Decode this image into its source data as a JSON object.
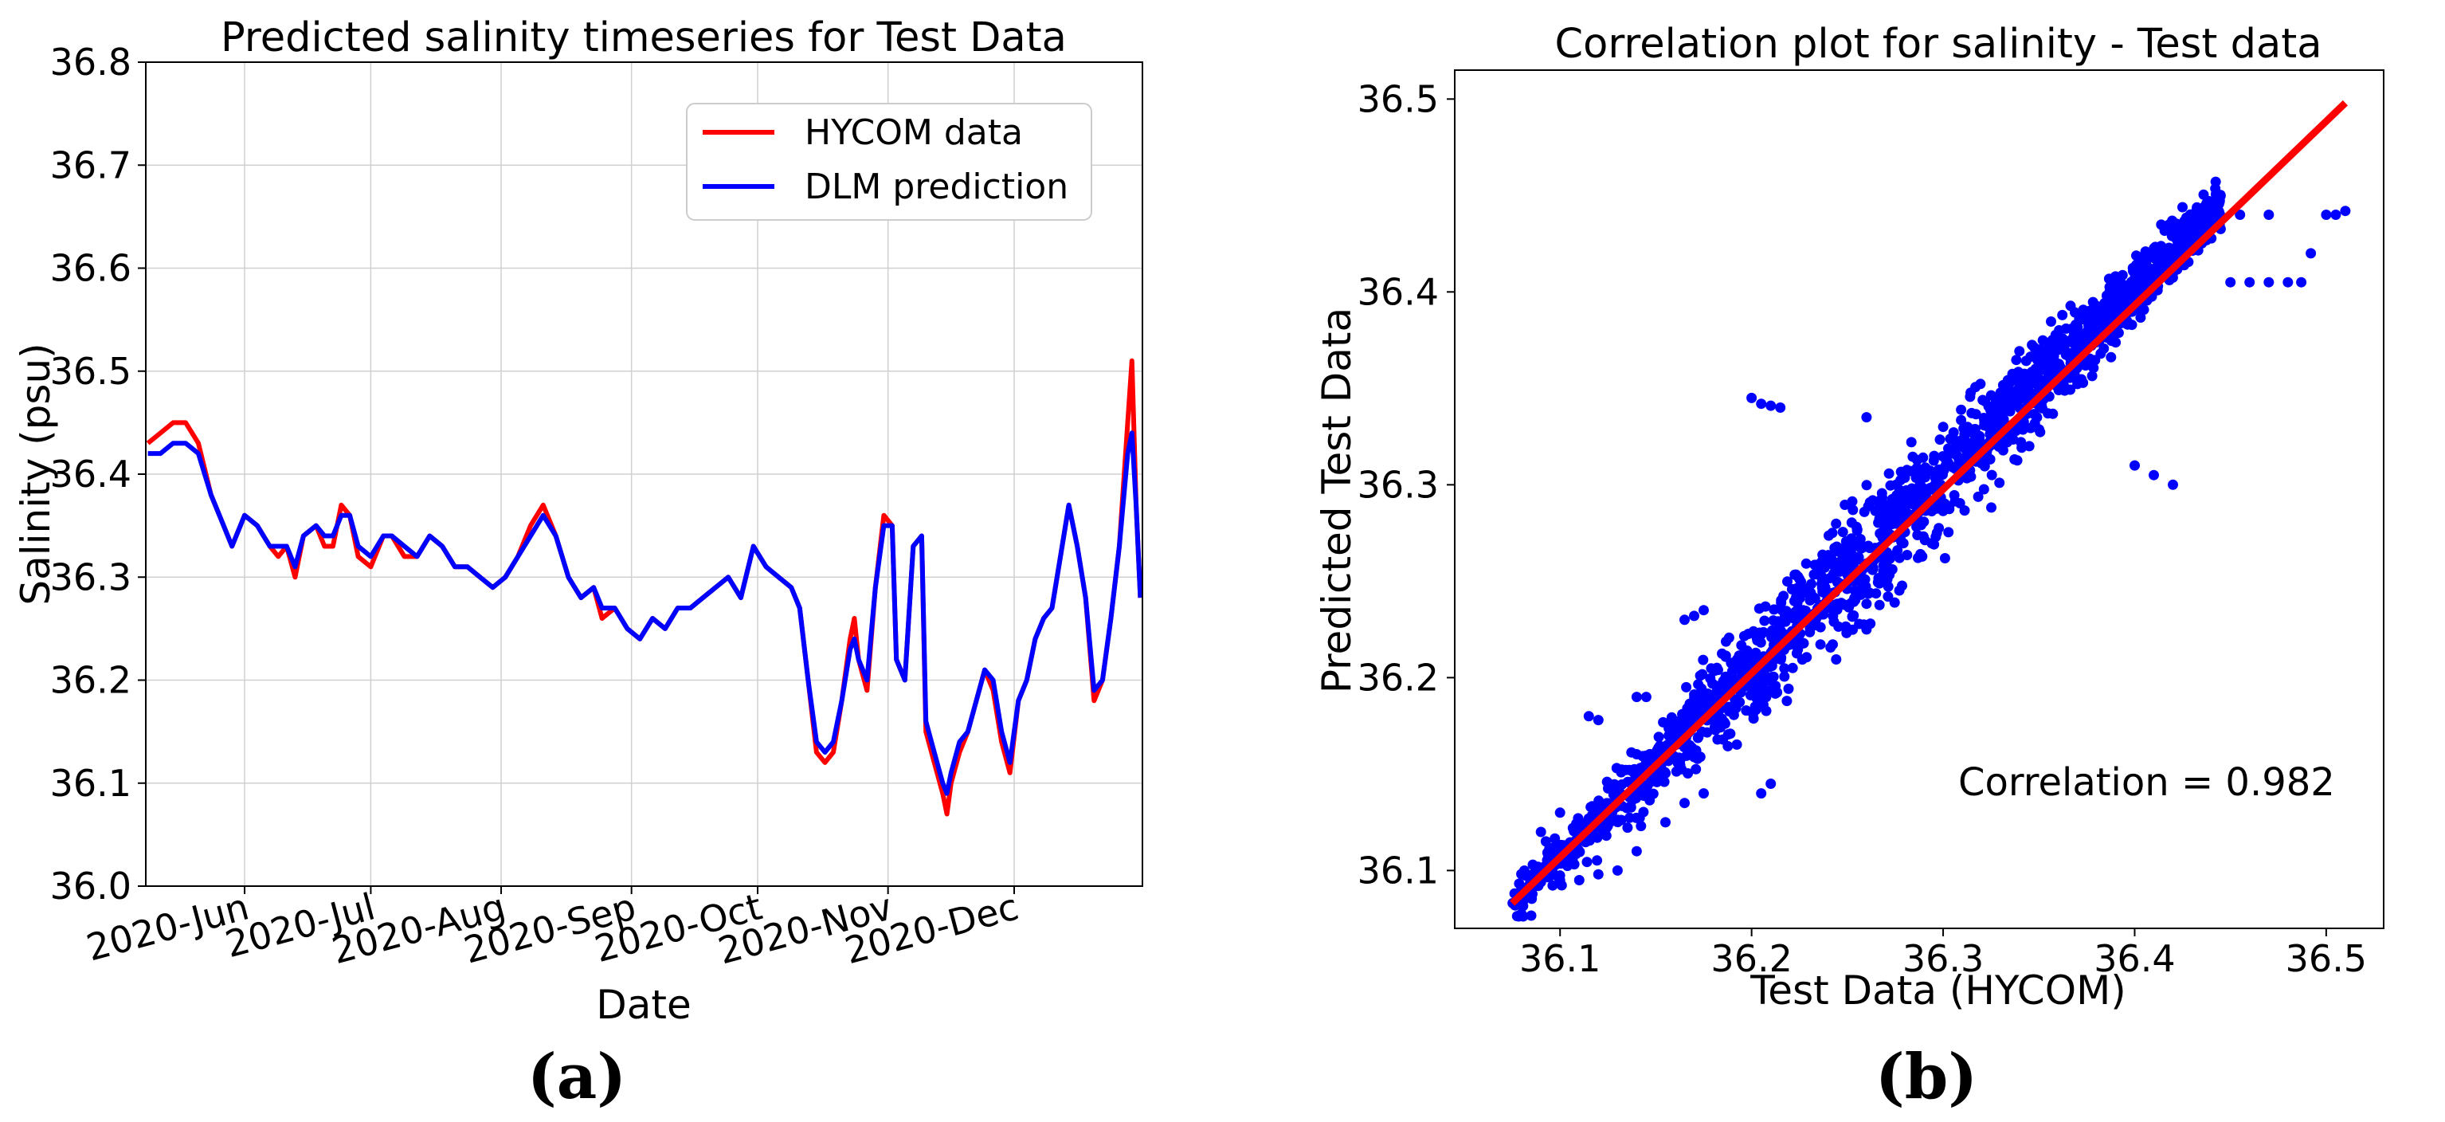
{
  "chart_data": [
    {
      "type": "line",
      "title": "Predicted salinity timeseries for Test Data",
      "xlabel": "Date",
      "ylabel": "Salinity (psu)",
      "panel_label": "(a)",
      "grid": true,
      "ylim": [
        36.0,
        36.8
      ],
      "yticks": [
        36.0,
        36.1,
        36.2,
        36.3,
        36.4,
        36.5,
        36.6,
        36.7,
        36.8
      ],
      "ytick_labels": [
        "36.0",
        "36.1",
        "36.2",
        "36.3",
        "36.4",
        "36.5",
        "36.6",
        "36.7",
        "36.8"
      ],
      "xlim_days": [
        -23.5,
        213.5
      ],
      "x_unit": "days since 2020-06-01",
      "xticks_days": [
        0,
        30,
        61,
        92,
        122,
        153,
        183
      ],
      "xtick_labels": [
        "2020-Jun",
        "2020-Jul",
        "2020-Aug",
        "2020-Sep",
        "2020-Oct",
        "2020-Nov",
        "2020-Dec"
      ],
      "legend_position": "top-right",
      "series": [
        {
          "name": "HYCOM data",
          "color": "#ff0000",
          "points": [
            [
              -23,
              36.43
            ],
            [
              -20,
              36.44
            ],
            [
              -17,
              36.45
            ],
            [
              -14,
              36.45
            ],
            [
              -11,
              36.43
            ],
            [
              -8,
              36.38
            ],
            [
              -5,
              36.35
            ],
            [
              -3,
              36.33
            ],
            [
              0,
              36.36
            ],
            [
              3,
              36.35
            ],
            [
              6,
              36.33
            ],
            [
              8,
              36.32
            ],
            [
              10,
              36.33
            ],
            [
              12,
              36.3
            ],
            [
              14,
              36.34
            ],
            [
              17,
              36.35
            ],
            [
              19,
              36.33
            ],
            [
              21,
              36.33
            ],
            [
              23,
              36.37
            ],
            [
              25,
              36.36
            ],
            [
              27,
              36.32
            ],
            [
              30,
              36.31
            ],
            [
              33,
              36.34
            ],
            [
              35,
              36.34
            ],
            [
              38,
              36.32
            ],
            [
              41,
              36.32
            ],
            [
              44,
              36.34
            ],
            [
              47,
              36.33
            ],
            [
              50,
              36.31
            ],
            [
              53,
              36.31
            ],
            [
              56,
              36.3
            ],
            [
              59,
              36.29
            ],
            [
              62,
              36.3
            ],
            [
              65,
              36.32
            ],
            [
              68,
              36.35
            ],
            [
              71,
              36.37
            ],
            [
              74,
              36.34
            ],
            [
              77,
              36.3
            ],
            [
              80,
              36.28
            ],
            [
              83,
              36.29
            ],
            [
              85,
              36.26
            ],
            [
              88,
              36.27
            ],
            [
              91,
              36.25
            ],
            [
              94,
              36.24
            ],
            [
              97,
              36.26
            ],
            [
              100,
              36.25
            ],
            [
              103,
              36.27
            ],
            [
              106,
              36.27
            ],
            [
              109,
              36.28
            ],
            [
              112,
              36.29
            ],
            [
              115,
              36.3
            ],
            [
              118,
              36.28
            ],
            [
              121,
              36.33
            ],
            [
              124,
              36.31
            ],
            [
              127,
              36.3
            ],
            [
              130,
              36.29
            ],
            [
              132,
              36.27
            ],
            [
              134,
              36.2
            ],
            [
              136,
              36.13
            ],
            [
              138,
              36.12
            ],
            [
              140,
              36.13
            ],
            [
              142,
              36.18
            ],
            [
              144,
              36.24
            ],
            [
              145,
              36.26
            ],
            [
              146,
              36.22
            ],
            [
              148,
              36.19
            ],
            [
              150,
              36.29
            ],
            [
              152,
              36.36
            ],
            [
              154,
              36.35
            ],
            [
              155,
              36.22
            ],
            [
              157,
              36.2
            ],
            [
              159,
              36.33
            ],
            [
              161,
              36.34
            ],
            [
              162,
              36.15
            ],
            [
              164,
              36.12
            ],
            [
              166,
              36.09
            ],
            [
              167,
              36.07
            ],
            [
              168,
              36.1
            ],
            [
              170,
              36.13
            ],
            [
              172,
              36.15
            ],
            [
              174,
              36.18
            ],
            [
              176,
              36.21
            ],
            [
              178,
              36.19
            ],
            [
              180,
              36.14
            ],
            [
              182,
              36.11
            ],
            [
              184,
              36.18
            ],
            [
              186,
              36.2
            ],
            [
              188,
              36.24
            ],
            [
              190,
              36.26
            ],
            [
              192,
              36.27
            ],
            [
              194,
              36.32
            ],
            [
              196,
              36.37
            ],
            [
              198,
              36.33
            ],
            [
              200,
              36.28
            ],
            [
              202,
              36.18
            ],
            [
              204,
              36.2
            ],
            [
              206,
              36.26
            ],
            [
              208,
              36.33
            ],
            [
              210,
              36.45
            ],
            [
              211,
              36.51
            ],
            [
              212,
              36.37
            ],
            [
              213,
              36.28
            ]
          ]
        },
        {
          "name": "DLM prediction",
          "color": "#0000ff",
          "points": [
            [
              -23,
              36.42
            ],
            [
              -20,
              36.42
            ],
            [
              -17,
              36.43
            ],
            [
              -14,
              36.43
            ],
            [
              -11,
              36.42
            ],
            [
              -8,
              36.38
            ],
            [
              -5,
              36.35
            ],
            [
              -3,
              36.33
            ],
            [
              0,
              36.36
            ],
            [
              3,
              36.35
            ],
            [
              6,
              36.33
            ],
            [
              8,
              36.33
            ],
            [
              10,
              36.33
            ],
            [
              12,
              36.31
            ],
            [
              14,
              36.34
            ],
            [
              17,
              36.35
            ],
            [
              19,
              36.34
            ],
            [
              21,
              36.34
            ],
            [
              23,
              36.36
            ],
            [
              25,
              36.36
            ],
            [
              27,
              36.33
            ],
            [
              30,
              36.32
            ],
            [
              33,
              36.34
            ],
            [
              35,
              36.34
            ],
            [
              38,
              36.33
            ],
            [
              41,
              36.32
            ],
            [
              44,
              36.34
            ],
            [
              47,
              36.33
            ],
            [
              50,
              36.31
            ],
            [
              53,
              36.31
            ],
            [
              56,
              36.3
            ],
            [
              59,
              36.29
            ],
            [
              62,
              36.3
            ],
            [
              65,
              36.32
            ],
            [
              68,
              36.34
            ],
            [
              71,
              36.36
            ],
            [
              74,
              36.34
            ],
            [
              77,
              36.3
            ],
            [
              80,
              36.28
            ],
            [
              83,
              36.29
            ],
            [
              85,
              36.27
            ],
            [
              88,
              36.27
            ],
            [
              91,
              36.25
            ],
            [
              94,
              36.24
            ],
            [
              97,
              36.26
            ],
            [
              100,
              36.25
            ],
            [
              103,
              36.27
            ],
            [
              106,
              36.27
            ],
            [
              109,
              36.28
            ],
            [
              112,
              36.29
            ],
            [
              115,
              36.3
            ],
            [
              118,
              36.28
            ],
            [
              121,
              36.33
            ],
            [
              124,
              36.31
            ],
            [
              127,
              36.3
            ],
            [
              130,
              36.29
            ],
            [
              132,
              36.27
            ],
            [
              134,
              36.2
            ],
            [
              136,
              36.14
            ],
            [
              138,
              36.13
            ],
            [
              140,
              36.14
            ],
            [
              142,
              36.18
            ],
            [
              144,
              36.23
            ],
            [
              145,
              36.24
            ],
            [
              146,
              36.22
            ],
            [
              148,
              36.2
            ],
            [
              150,
              36.29
            ],
            [
              152,
              36.35
            ],
            [
              154,
              36.35
            ],
            [
              155,
              36.22
            ],
            [
              157,
              36.2
            ],
            [
              159,
              36.33
            ],
            [
              161,
              36.34
            ],
            [
              162,
              36.16
            ],
            [
              164,
              36.13
            ],
            [
              166,
              36.1
            ],
            [
              167,
              36.09
            ],
            [
              168,
              36.11
            ],
            [
              170,
              36.14
            ],
            [
              172,
              36.15
            ],
            [
              174,
              36.18
            ],
            [
              176,
              36.21
            ],
            [
              178,
              36.2
            ],
            [
              180,
              36.15
            ],
            [
              182,
              36.12
            ],
            [
              184,
              36.18
            ],
            [
              186,
              36.2
            ],
            [
              188,
              36.24
            ],
            [
              190,
              36.26
            ],
            [
              192,
              36.27
            ],
            [
              194,
              36.32
            ],
            [
              196,
              36.37
            ],
            [
              198,
              36.33
            ],
            [
              200,
              36.28
            ],
            [
              202,
              36.19
            ],
            [
              204,
              36.2
            ],
            [
              206,
              36.26
            ],
            [
              208,
              36.33
            ],
            [
              210,
              36.42
            ],
            [
              211,
              36.44
            ],
            [
              212,
              36.37
            ],
            [
              213,
              36.28
            ]
          ]
        }
      ]
    },
    {
      "type": "scatter",
      "title": "Correlation plot for salinity - Test data",
      "xlabel": "Test Data (HYCOM)",
      "ylabel": "Predicted Test Data",
      "panel_label": "(b)",
      "grid": false,
      "xlim": [
        36.045,
        36.53
      ],
      "ylim": [
        36.07,
        36.515
      ],
      "xticks": [
        36.1,
        36.2,
        36.3,
        36.4,
        36.5
      ],
      "xtick_labels": [
        "36.1",
        "36.2",
        "36.3",
        "36.4",
        "36.5"
      ],
      "yticks": [
        36.1,
        36.2,
        36.3,
        36.4,
        36.5
      ],
      "ytick_labels": [
        "36.1",
        "36.2",
        "36.3",
        "36.4",
        "36.5"
      ],
      "annotation": "Correlation = 0.982",
      "correlation": 0.982,
      "fit_line": {
        "color": "#ff0000",
        "x": [
          36.075,
          36.51
        ],
        "y": [
          36.083,
          36.498
        ]
      },
      "point_color": "#0000ff",
      "scatter_generated": {
        "n": 1800,
        "x_range": [
          36.075,
          36.445
        ],
        "slope": 0.98,
        "noise_sd": 0.012
      },
      "points": [
        [
          36.2,
          36.345
        ],
        [
          36.205,
          36.342
        ],
        [
          36.21,
          36.341
        ],
        [
          36.215,
          36.34
        ],
        [
          36.26,
          36.335
        ],
        [
          36.3,
          36.33
        ],
        [
          36.345,
          36.32
        ],
        [
          36.4,
          36.31
        ],
        [
          36.41,
          36.305
        ],
        [
          36.42,
          36.3
        ],
        [
          36.455,
          36.44
        ],
        [
          36.47,
          36.44
        ],
        [
          36.5,
          36.44
        ],
        [
          36.505,
          36.44
        ],
        [
          36.51,
          36.442
        ],
        [
          36.492,
          36.42
        ],
        [
          36.487,
          36.405
        ],
        [
          36.48,
          36.405
        ],
        [
          36.47,
          36.405
        ],
        [
          36.46,
          36.405
        ],
        [
          36.45,
          36.405
        ],
        [
          36.26,
          36.225
        ],
        [
          36.262,
          36.228
        ],
        [
          36.205,
          36.14
        ],
        [
          36.21,
          36.145
        ],
        [
          36.085,
          36.095
        ],
        [
          36.09,
          36.094
        ],
        [
          36.1,
          36.095
        ],
        [
          36.11,
          36.095
        ],
        [
          36.12,
          36.098
        ],
        [
          36.13,
          36.1
        ],
        [
          36.14,
          36.11
        ],
        [
          36.155,
          36.125
        ],
        [
          36.165,
          36.135
        ],
        [
          36.175,
          36.14
        ],
        [
          36.09,
          36.12
        ],
        [
          36.1,
          36.13
        ],
        [
          36.14,
          36.19
        ],
        [
          36.145,
          36.19
        ],
        [
          36.165,
          36.23
        ],
        [
          36.17,
          36.232
        ],
        [
          36.175,
          36.235
        ],
        [
          36.115,
          36.18
        ],
        [
          36.12,
          36.178
        ]
      ]
    }
  ]
}
